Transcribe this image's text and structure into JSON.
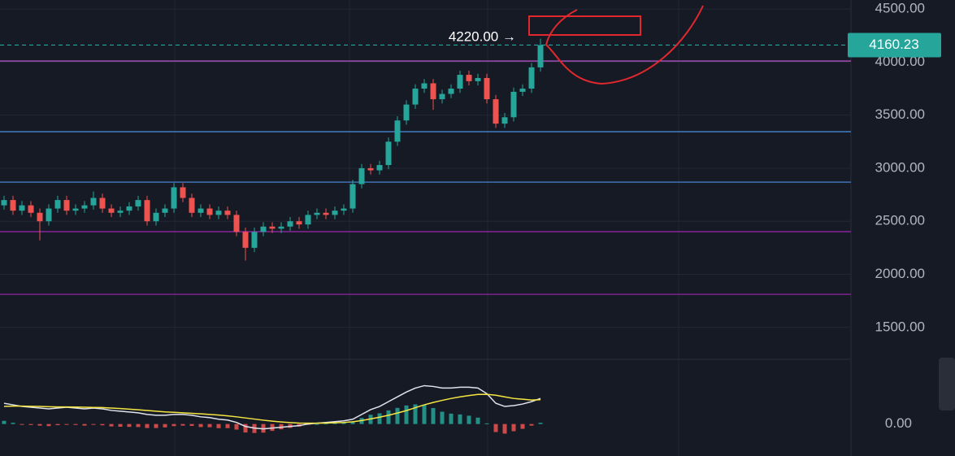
{
  "chart_data": {
    "type": "candlestick",
    "annotation": "4220.00 →",
    "last_price": {
      "value": 4160.23,
      "label": "4160.23"
    },
    "up_color": "#26a69a",
    "down_color": "#ef5350",
    "ylim": [
      1215,
      4585
    ],
    "yticks": [
      {
        "value": 4500,
        "label": "4500.00"
      },
      {
        "value": 4000,
        "label": "4000.00"
      },
      {
        "value": 3500,
        "label": "3500.00"
      },
      {
        "value": 3000,
        "label": "3000.00"
      },
      {
        "value": 2500,
        "label": "2500.00"
      },
      {
        "value": 2000,
        "label": "2000.00"
      },
      {
        "value": 1500,
        "label": "1500.00"
      }
    ],
    "grid": true,
    "levels": [
      {
        "value": 4160.23,
        "color": "#26a69a",
        "dashed": true
      },
      {
        "value": 4010,
        "color": "#d05ce3",
        "dashed": false
      },
      {
        "value": 3344,
        "color": "#4a90e2",
        "dashed": false
      },
      {
        "value": 2869,
        "color": "#4a90e2",
        "dashed": false
      },
      {
        "value": 2402,
        "color": "#9c27b0",
        "dashed": false
      },
      {
        "value": 1812,
        "color": "#9c27b0",
        "dashed": false
      }
    ],
    "candles": {
      "open": [
        2650,
        2700,
        2600,
        2650,
        2580,
        2500,
        2620,
        2700,
        2600,
        2620,
        2650,
        2720,
        2620,
        2580,
        2600,
        2640,
        2700,
        2500,
        2580,
        2620,
        2820,
        2720,
        2580,
        2620,
        2560,
        2600,
        2560,
        2400,
        2250,
        2400,
        2450,
        2430,
        2450,
        2500,
        2470,
        2560,
        2580,
        2560,
        2600,
        2620,
        2850,
        3000,
        2980,
        3030,
        3250,
        3450,
        3600,
        3750,
        3800,
        3650,
        3700,
        3750,
        3880,
        3820,
        3850,
        3650,
        3420,
        3480,
        3720,
        3750,
        3950
      ],
      "high": [
        2740,
        2740,
        2690,
        2690,
        2620,
        2660,
        2740,
        2740,
        2660,
        2690,
        2780,
        2760,
        2660,
        2640,
        2680,
        2740,
        2740,
        2620,
        2660,
        2860,
        2860,
        2760,
        2660,
        2660,
        2640,
        2640,
        2600,
        2440,
        2440,
        2490,
        2490,
        2490,
        2540,
        2540,
        2600,
        2620,
        2620,
        2640,
        2660,
        2890,
        3040,
        3040,
        3070,
        3290,
        3490,
        3640,
        3790,
        3840,
        3840,
        3740,
        3790,
        3920,
        3920,
        3890,
        3890,
        3690,
        3520,
        3760,
        3790,
        3990,
        4220
      ],
      "low": [
        2610,
        2560,
        2560,
        2540,
        2320,
        2460,
        2580,
        2560,
        2560,
        2580,
        2610,
        2580,
        2540,
        2540,
        2560,
        2600,
        2460,
        2460,
        2540,
        2580,
        2680,
        2540,
        2540,
        2520,
        2520,
        2520,
        2360,
        2130,
        2210,
        2360,
        2390,
        2390,
        2410,
        2430,
        2430,
        2520,
        2520,
        2520,
        2560,
        2580,
        2810,
        2940,
        2940,
        2990,
        3210,
        3410,
        3560,
        3710,
        3550,
        3610,
        3660,
        3710,
        3780,
        3780,
        3610,
        3380,
        3380,
        3440,
        3680,
        3710,
        3910
      ],
      "close": [
        2700,
        2600,
        2650,
        2580,
        2500,
        2620,
        2700,
        2600,
        2620,
        2650,
        2720,
        2620,
        2580,
        2600,
        2640,
        2700,
        2500,
        2580,
        2620,
        2820,
        2720,
        2580,
        2620,
        2560,
        2600,
        2560,
        2400,
        2250,
        2400,
        2450,
        2430,
        2450,
        2500,
        2470,
        2560,
        2580,
        2560,
        2600,
        2620,
        2850,
        3000,
        2980,
        3030,
        3250,
        3450,
        3600,
        3750,
        3800,
        3650,
        3700,
        3750,
        3880,
        3820,
        3850,
        3650,
        3420,
        3480,
        3720,
        3750,
        3950,
        4160
      ]
    },
    "macd": {
      "ylim": [
        -200,
        405
      ],
      "yticks": [
        {
          "value": 0,
          "label": "0.00"
        }
      ],
      "series": [
        {
          "color": "#e0e3eb",
          "values": [
            130,
            120,
            110,
            105,
            100,
            95,
            100,
            105,
            100,
            95,
            100,
            95,
            85,
            80,
            75,
            70,
            60,
            55,
            55,
            60,
            60,
            55,
            45,
            40,
            30,
            25,
            10,
            -15,
            -25,
            -30,
            -25,
            -20,
            -15,
            -10,
            0,
            5,
            10,
            15,
            20,
            30,
            60,
            90,
            110,
            140,
            170,
            200,
            225,
            240,
            235,
            225,
            225,
            230,
            230,
            225,
            190,
            130,
            110,
            115,
            125,
            140,
            160
          ]
        },
        {
          "color": "#f5e642",
          "values": [
            110,
            112,
            112,
            111,
            110,
            108,
            107,
            107,
            106,
            105,
            104,
            103,
            100,
            97,
            93,
            89,
            85,
            80,
            76,
            73,
            70,
            67,
            64,
            60,
            56,
            51,
            45,
            38,
            31,
            24,
            18,
            13,
            9,
            6,
            5,
            5,
            6,
            8,
            10,
            14,
            22,
            32,
            43,
            55,
            69,
            84,
            102,
            120,
            135,
            148,
            160,
            170,
            178,
            185,
            186,
            180,
            170,
            160,
            155,
            150,
            152
          ]
        }
      ],
      "histogram": [
        20,
        8,
        -2,
        -6,
        -10,
        -13,
        -7,
        -2,
        -6,
        -10,
        -4,
        -8,
        -15,
        -17,
        -18,
        -19,
        -25,
        -25,
        -21,
        -13,
        -10,
        -12,
        -19,
        -20,
        -26,
        -26,
        -35,
        -53,
        -56,
        -54,
        -43,
        -33,
        -24,
        -16,
        -5,
        0,
        4,
        7,
        10,
        16,
        38,
        58,
        67,
        85,
        101,
        116,
        123,
        120,
        100,
        77,
        65,
        60,
        52,
        40,
        4,
        -50,
        -60,
        -45,
        -30,
        -10,
        8
      ]
    }
  }
}
